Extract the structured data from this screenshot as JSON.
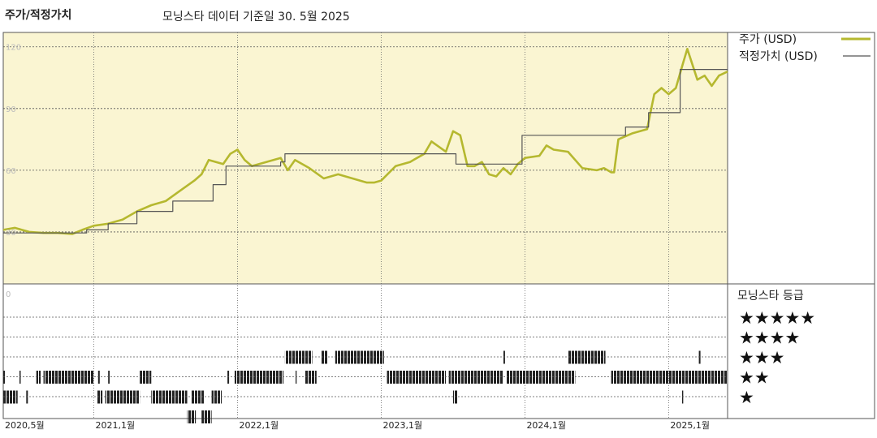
{
  "header": {
    "title": "주가/적정가치",
    "subtitle": "모닝스타 데이터 기준일 30. 5월 2025"
  },
  "chart_data": {
    "type": "line",
    "title": "주가/적정가치",
    "subtitle": "모닝스타 데이터 기준일 30. 5월 2025",
    "ylim": [
      0,
      127
    ],
    "y_ticks": [
      0,
      30,
      60,
      90,
      120
    ],
    "y_tick_labels": [
      "0",
      "30",
      "60",
      "90",
      "120"
    ],
    "x_tick_labels": [
      "2020,5월",
      "2021,1월",
      "2022,1월",
      "2023,1월",
      "2024,1월",
      "2025,1월"
    ],
    "x_tick_dates": [
      2020.37,
      2021.0,
      2022.0,
      2023.0,
      2024.0,
      2025.0
    ],
    "xlim": [
      2020.37,
      2025.41
    ],
    "legend": {
      "position": "top-right"
    },
    "grid": true,
    "colors": {
      "price": "#b5b82f",
      "fair_value": "#555555",
      "plot_bg": "#faf5d2"
    },
    "series": [
      {
        "name": "주가 (USD)",
        "points": [
          [
            2020.37,
            31
          ],
          [
            2020.45,
            32
          ],
          [
            2020.55,
            30
          ],
          [
            2020.65,
            29.5
          ],
          [
            2020.75,
            29.5
          ],
          [
            2020.85,
            29
          ],
          [
            2020.92,
            31
          ],
          [
            2021.0,
            33
          ],
          [
            2021.1,
            34
          ],
          [
            2021.2,
            36
          ],
          [
            2021.3,
            40
          ],
          [
            2021.4,
            43
          ],
          [
            2021.5,
            45
          ],
          [
            2021.6,
            50
          ],
          [
            2021.7,
            55
          ],
          [
            2021.75,
            58
          ],
          [
            2021.8,
            65
          ],
          [
            2021.9,
            63
          ],
          [
            2021.95,
            68
          ],
          [
            2022.0,
            70
          ],
          [
            2022.05,
            65
          ],
          [
            2022.1,
            62
          ],
          [
            2022.2,
            64
          ],
          [
            2022.3,
            66
          ],
          [
            2022.35,
            60
          ],
          [
            2022.4,
            65
          ],
          [
            2022.5,
            61
          ],
          [
            2022.6,
            56
          ],
          [
            2022.7,
            58
          ],
          [
            2022.8,
            56
          ],
          [
            2022.9,
            54
          ],
          [
            2022.95,
            54
          ],
          [
            2023.0,
            55
          ],
          [
            2023.1,
            62
          ],
          [
            2023.2,
            64
          ],
          [
            2023.3,
            68
          ],
          [
            2023.35,
            74
          ],
          [
            2023.45,
            69
          ],
          [
            2023.5,
            79
          ],
          [
            2023.55,
            77
          ],
          [
            2023.6,
            62
          ],
          [
            2023.65,
            62
          ],
          [
            2023.7,
            64
          ],
          [
            2023.75,
            58
          ],
          [
            2023.8,
            57
          ],
          [
            2023.85,
            61
          ],
          [
            2023.9,
            58
          ],
          [
            2023.95,
            63
          ],
          [
            2024.0,
            66
          ],
          [
            2024.1,
            67
          ],
          [
            2024.15,
            72
          ],
          [
            2024.2,
            70
          ],
          [
            2024.3,
            69
          ],
          [
            2024.4,
            61
          ],
          [
            2024.5,
            60
          ],
          [
            2024.55,
            61
          ],
          [
            2024.6,
            59
          ],
          [
            2024.62,
            59
          ],
          [
            2024.65,
            75
          ],
          [
            2024.75,
            78
          ],
          [
            2024.85,
            80
          ],
          [
            2024.9,
            97
          ],
          [
            2024.95,
            100
          ],
          [
            2025.0,
            97
          ],
          [
            2025.05,
            100
          ],
          [
            2025.1,
            112
          ],
          [
            2025.13,
            119
          ],
          [
            2025.2,
            104
          ],
          [
            2025.25,
            106
          ],
          [
            2025.3,
            101
          ],
          [
            2025.35,
            106
          ],
          [
            2025.41,
            108
          ]
        ]
      },
      {
        "name": "적정가치 (USD)",
        "points": [
          [
            2020.37,
            29.5
          ],
          [
            2020.95,
            29.5
          ],
          [
            2020.95,
            31
          ],
          [
            2021.1,
            31
          ],
          [
            2021.1,
            34
          ],
          [
            2021.3,
            34
          ],
          [
            2021.3,
            40
          ],
          [
            2021.55,
            40
          ],
          [
            2021.55,
            45
          ],
          [
            2021.83,
            45
          ],
          [
            2021.83,
            53
          ],
          [
            2021.92,
            53
          ],
          [
            2021.92,
            62
          ],
          [
            2022.3,
            62
          ],
          [
            2022.3,
            64
          ],
          [
            2022.33,
            64
          ],
          [
            2022.33,
            68
          ],
          [
            2023.52,
            68
          ],
          [
            2023.52,
            63
          ],
          [
            2023.85,
            63
          ],
          [
            2023.85,
            63
          ],
          [
            2023.98,
            63
          ],
          [
            2023.98,
            77
          ],
          [
            2024.7,
            77
          ],
          [
            2024.7,
            81
          ],
          [
            2024.86,
            81
          ],
          [
            2024.86,
            88
          ],
          [
            2025.08,
            88
          ],
          [
            2025.08,
            109
          ],
          [
            2025.41,
            109
          ]
        ]
      }
    ]
  },
  "rating_panel": {
    "title": "모닝스타 등급",
    "levels": [
      {
        "stars": 5,
        "label": "★★★★★",
        "segments": []
      },
      {
        "stars": 4,
        "label": "★★★★",
        "segments": [
          [
            2022.33,
            2022.52
          ],
          [
            2022.58,
            2022.63
          ],
          [
            2022.68,
            2023.02
          ],
          [
            2023.85,
            2023.86
          ],
          [
            2024.3,
            2024.56
          ],
          [
            2025.21,
            2025.22
          ]
        ]
      },
      {
        "stars": 3,
        "label": "★★★",
        "segments": [
          [
            2020.37,
            2020.38
          ],
          [
            2020.48,
            2020.49
          ],
          [
            2020.6,
            2020.63
          ],
          [
            2020.65,
            2021.0
          ],
          [
            2021.03,
            2021.04
          ],
          [
            2021.1,
            2021.11
          ],
          [
            2021.32,
            2021.4
          ],
          [
            2021.93,
            2021.94
          ],
          [
            2021.98,
            2022.32
          ],
          [
            2022.4,
            2022.41
          ],
          [
            2022.47,
            2022.55
          ],
          [
            2023.04,
            2023.45
          ],
          [
            2023.47,
            2023.85
          ],
          [
            2023.87,
            2024.35
          ],
          [
            2024.6,
            2025.41
          ]
        ]
      },
      {
        "stars": 2,
        "label": "★★",
        "segments": [
          [
            2020.37,
            2020.47
          ],
          [
            2020.53,
            2020.54
          ],
          [
            2021.02,
            2021.06
          ],
          [
            2021.08,
            2021.32
          ],
          [
            2021.4,
            2021.65
          ],
          [
            2021.68,
            2021.77
          ],
          [
            2021.82,
            2021.89
          ],
          [
            2023.5,
            2023.53
          ],
          [
            2025.09,
            2025.1
          ]
        ]
      },
      {
        "stars": 1,
        "label": "★",
        "segments": [
          [
            2021.65,
            2021.71
          ],
          [
            2021.75,
            2021.82
          ]
        ]
      }
    ]
  }
}
